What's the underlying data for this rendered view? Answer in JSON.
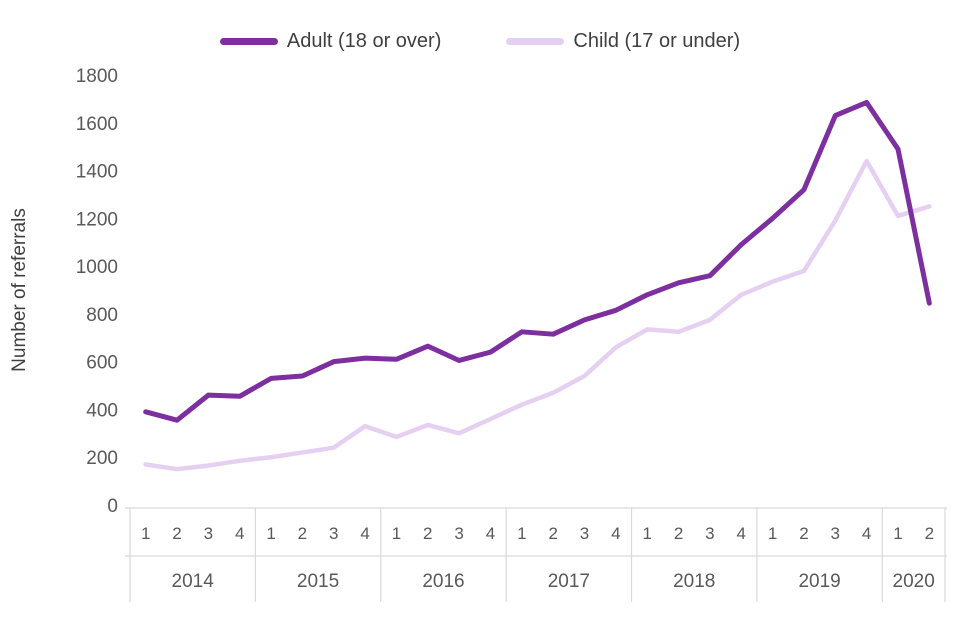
{
  "chart_data": {
    "type": "line",
    "title": "",
    "xlabel": "",
    "ylabel": "Number of referrals",
    "ylim": [
      0,
      1800
    ],
    "ytick_step": 200,
    "grid": false,
    "legend_position": "top",
    "years": [
      {
        "label": "2014",
        "quarters": 4
      },
      {
        "label": "2015",
        "quarters": 4
      },
      {
        "label": "2016",
        "quarters": 4
      },
      {
        "label": "2017",
        "quarters": 4
      },
      {
        "label": "2018",
        "quarters": 4
      },
      {
        "label": "2019",
        "quarters": 4
      },
      {
        "label": "2020",
        "quarters": 2
      }
    ],
    "series": [
      {
        "key": "adult",
        "name": "Adult (18 or over)",
        "color": "#7D2E9F",
        "width": 5,
        "values": [
          390,
          355,
          460,
          455,
          530,
          540,
          600,
          615,
          610,
          665,
          605,
          640,
          725,
          715,
          775,
          815,
          880,
          930,
          960,
          1090,
          1200,
          1320,
          1630,
          1685,
          1490,
          845
        ]
      },
      {
        "key": "child",
        "name": "Child (17 or under)",
        "color": "#E5D0F2",
        "width": 4.5,
        "values": [
          170,
          150,
          165,
          185,
          200,
          220,
          240,
          330,
          285,
          335,
          300,
          360,
          420,
          470,
          540,
          660,
          735,
          725,
          775,
          880,
          935,
          980,
          1190,
          1440,
          1210,
          1250
        ]
      }
    ],
    "axis_style": {
      "tick_color": "#595959",
      "line_color": "#D9D9D9"
    }
  }
}
